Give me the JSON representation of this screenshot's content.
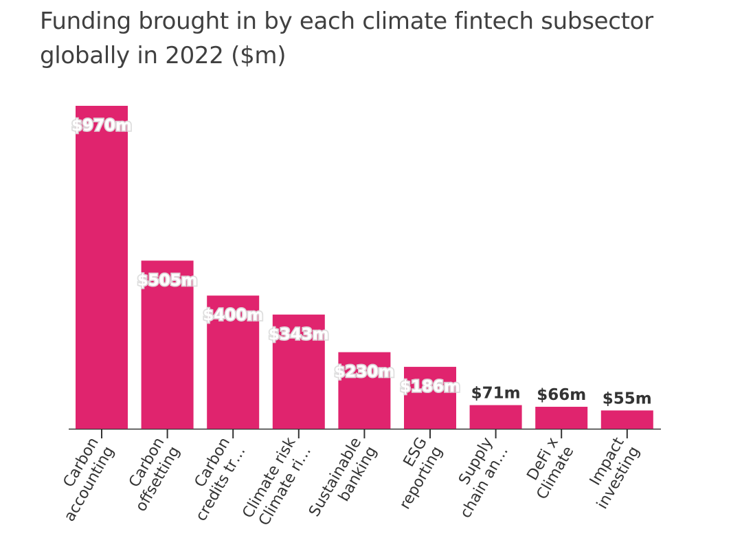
{
  "chart_data": {
    "type": "bar",
    "title": "Funding brought in by each climate fintech subsector globally in 2022 ($m)",
    "categories": [
      [
        "Carbon",
        "accounting"
      ],
      [
        "Carbon",
        "offsetting"
      ],
      [
        "Carbon",
        "credits tr…"
      ],
      [
        "Climate risk",
        "Climate ri…"
      ],
      [
        "Sustainable",
        "banking"
      ],
      [
        "ESG",
        "reporting"
      ],
      [
        "Supply",
        "chain an…"
      ],
      [
        "DeFi x",
        "Climate"
      ],
      [
        "Impact",
        "investing"
      ]
    ],
    "values": [
      970,
      505,
      400,
      343,
      230,
      186,
      71,
      66,
      55
    ],
    "data_labels": [
      "$970m",
      "$505m",
      "$400m",
      "$343m",
      "$230m",
      "$186m",
      "$71m",
      "$66m",
      "$55m"
    ],
    "ylim": [
      0,
      970
    ],
    "grid": false,
    "legend": "none",
    "colors": {
      "bar": "#e0246e",
      "label_inside": "#ffffff",
      "label_outside": "#333333",
      "axis": "#333333"
    }
  }
}
